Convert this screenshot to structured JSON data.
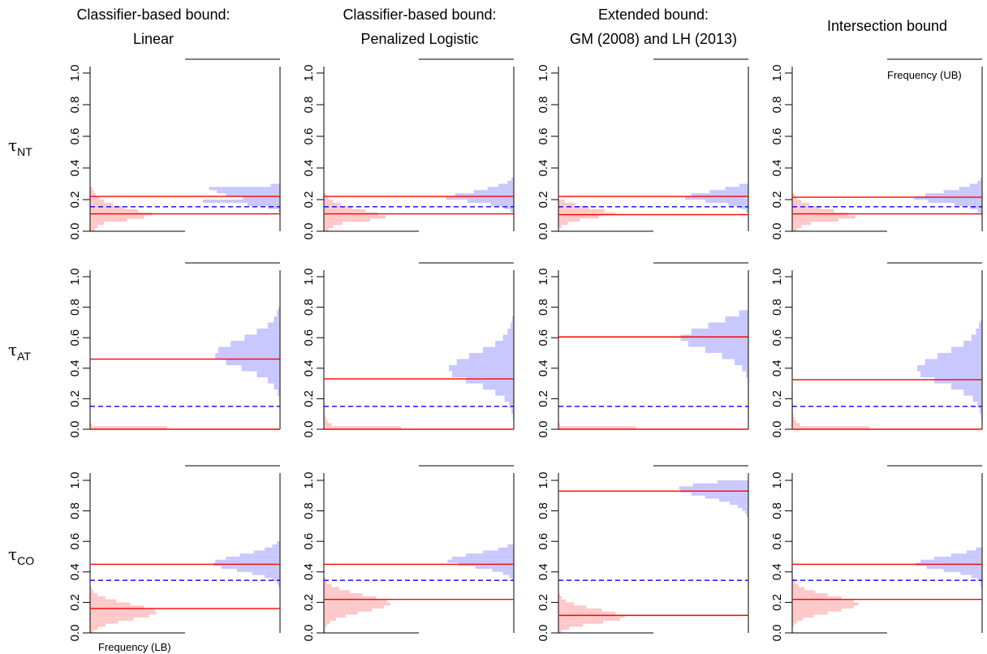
{
  "figure": {
    "column_titles": [
      [
        "Classifier-based bound:",
        "Linear"
      ],
      [
        "Classifier-based bound:",
        "Penalized Logistic"
      ],
      [
        "Extended bound:",
        "GM (2008) and LH (2013)"
      ],
      [
        "Intersection bound"
      ]
    ],
    "row_labels": [
      {
        "greek": "τ",
        "sub": "NT"
      },
      {
        "greek": "τ",
        "sub": "AT"
      },
      {
        "greek": "τ",
        "sub": "CO"
      }
    ],
    "frequency_lb_label": "Frequency (LB)",
    "frequency_ub_label": "Frequency (UB)",
    "y_ticks": [
      "0.0",
      "0.2",
      "0.4",
      "0.6",
      "0.8",
      "1.0"
    ],
    "colors": {
      "lb_hist": "#ffc8c8",
      "ub_hist": "#c8c8ff",
      "bound_line": "#ff0000",
      "truth_line": "#0000ff"
    }
  },
  "chart_data": {
    "type": "histogram",
    "ylim": [
      0,
      1
    ],
    "panels": [
      {
        "row": "NT",
        "col": "Classifier-based bound: Linear",
        "lb_mean": 0.11,
        "ub_mean": 0.22,
        "truth": 0.155,
        "lb_hist": {
          "bins": [
            0.0,
            0.02,
            0.04,
            0.06,
            0.08,
            0.1,
            0.12,
            0.14,
            0.16,
            0.18,
            0.2,
            0.22,
            0.24,
            0.26,
            0.28
          ],
          "counts": [
            6,
            10,
            18,
            48,
            70,
            80,
            62,
            44,
            30,
            18,
            12,
            7,
            5,
            3
          ]
        },
        "ub_hist": {
          "bins": [
            0.12,
            0.14,
            0.16,
            0.18,
            0.2,
            0.22,
            0.24,
            0.26,
            0.28,
            0.3
          ],
          "counts": [
            2,
            16,
            42,
            100,
            48,
            70,
            82,
            92,
            12
          ]
        }
      },
      {
        "row": "NT",
        "col": "Classifier-based bound: Penalized Logistic",
        "lb_mean": 0.11,
        "ub_mean": 0.22,
        "truth": 0.155,
        "lb_hist": {
          "bins": [
            0.0,
            0.02,
            0.04,
            0.06,
            0.08,
            0.1,
            0.12,
            0.14,
            0.16,
            0.18,
            0.2,
            0.22,
            0.24
          ],
          "counts": [
            6,
            12,
            24,
            60,
            80,
            70,
            54,
            36,
            22,
            12,
            6,
            3
          ]
        },
        "ub_hist": {
          "bins": [
            0.1,
            0.12,
            0.14,
            0.16,
            0.18,
            0.2,
            0.22,
            0.24,
            0.26,
            0.28,
            0.3,
            0.32,
            0.34
          ],
          "counts": [
            1,
            4,
            12,
            30,
            60,
            88,
            76,
            52,
            34,
            20,
            8,
            3
          ]
        }
      },
      {
        "row": "NT",
        "col": "Extended bound: GM (2008) and LH (2013)",
        "lb_mean": 0.105,
        "ub_mean": 0.22,
        "truth": 0.155,
        "lb_hist": {
          "bins": [
            0.02,
            0.04,
            0.06,
            0.08,
            0.1,
            0.12,
            0.14,
            0.16,
            0.18,
            0.2
          ],
          "counts": [
            4,
            12,
            28,
            52,
            74,
            60,
            40,
            22,
            8
          ]
        },
        "ub_hist": {
          "bins": [
            0.12,
            0.14,
            0.16,
            0.18,
            0.2,
            0.22,
            0.24,
            0.26,
            0.28,
            0.3
          ],
          "counts": [
            3,
            10,
            26,
            56,
            82,
            74,
            50,
            30,
            12
          ]
        }
      },
      {
        "row": "NT",
        "col": "Intersection bound",
        "lb_mean": 0.11,
        "ub_mean": 0.215,
        "truth": 0.155,
        "lb_hist": {
          "bins": [
            0.0,
            0.02,
            0.04,
            0.06,
            0.08,
            0.1,
            0.12,
            0.14,
            0.16,
            0.18,
            0.2,
            0.22,
            0.24
          ],
          "counts": [
            6,
            12,
            24,
            60,
            82,
            72,
            54,
            36,
            22,
            12,
            6,
            3
          ]
        },
        "ub_hist": {
          "bins": [
            0.1,
            0.12,
            0.14,
            0.16,
            0.18,
            0.2,
            0.22,
            0.24,
            0.26,
            0.28,
            0.3,
            0.32,
            0.34
          ],
          "counts": [
            2,
            6,
            16,
            36,
            70,
            88,
            74,
            50,
            30,
            16,
            6,
            2
          ]
        }
      },
      {
        "row": "AT",
        "col": "Classifier-based bound: Linear",
        "lb_mean": 0.0,
        "ub_mean": 0.46,
        "truth": 0.15,
        "lb_hist": {
          "bins": [
            0.0,
            0.02,
            0.04
          ],
          "counts": [
            100,
            2
          ]
        },
        "ub_hist": {
          "bins": [
            0.18,
            0.22,
            0.26,
            0.3,
            0.34,
            0.38,
            0.42,
            0.46,
            0.5,
            0.54,
            0.58,
            0.62,
            0.66,
            0.7,
            0.74,
            0.78,
            0.8
          ],
          "counts": [
            1,
            3,
            8,
            16,
            30,
            50,
            70,
            84,
            80,
            64,
            46,
            30,
            16,
            8,
            4,
            2
          ]
        }
      },
      {
        "row": "AT",
        "col": "Classifier-based bound: Penalized Logistic",
        "lb_mean": 0.0,
        "ub_mean": 0.33,
        "truth": 0.15,
        "lb_hist": {
          "bins": [
            0.0,
            0.02,
            0.04,
            0.06,
            0.08,
            0.1,
            0.12,
            0.14,
            0.16,
            0.18
          ],
          "counts": [
            100,
            10,
            5,
            3,
            2,
            1,
            1,
            1,
            1
          ]
        },
        "ub_hist": {
          "bins": [
            0.06,
            0.1,
            0.14,
            0.18,
            0.22,
            0.26,
            0.3,
            0.34,
            0.38,
            0.42,
            0.46,
            0.5,
            0.54,
            0.58,
            0.62,
            0.66,
            0.7,
            0.74
          ],
          "counts": [
            1,
            3,
            6,
            12,
            24,
            40,
            62,
            80,
            84,
            74,
            58,
            40,
            24,
            14,
            8,
            4,
            2
          ]
        }
      },
      {
        "row": "AT",
        "col": "Extended bound: GM (2008) and LH (2013)",
        "lb_mean": 0.0,
        "ub_mean": 0.605,
        "truth": 0.15,
        "lb_hist": {
          "bins": [
            0.0,
            0.02,
            0.04
          ],
          "counts": [
            100,
            2
          ]
        },
        "ub_hist": {
          "bins": [
            0.3,
            0.34,
            0.38,
            0.42,
            0.46,
            0.5,
            0.54,
            0.58,
            0.62,
            0.66,
            0.7,
            0.74,
            0.78
          ],
          "counts": [
            1,
            3,
            8,
            18,
            34,
            56,
            78,
            88,
            74,
            52,
            30,
            12
          ]
        }
      },
      {
        "row": "AT",
        "col": "Intersection bound",
        "lb_mean": 0.0,
        "ub_mean": 0.325,
        "truth": 0.15,
        "lb_hist": {
          "bins": [
            0.0,
            0.02,
            0.04,
            0.06,
            0.08,
            0.1,
            0.12,
            0.14,
            0.16,
            0.18
          ],
          "counts": [
            100,
            10,
            5,
            3,
            2,
            1,
            1,
            1,
            1
          ]
        },
        "ub_hist": {
          "bins": [
            0.06,
            0.1,
            0.14,
            0.18,
            0.22,
            0.26,
            0.3,
            0.34,
            0.38,
            0.42,
            0.46,
            0.5,
            0.54,
            0.58,
            0.62,
            0.66,
            0.7,
            0.72
          ],
          "counts": [
            1,
            3,
            6,
            12,
            24,
            40,
            62,
            80,
            84,
            74,
            58,
            40,
            24,
            14,
            8,
            4,
            2
          ]
        }
      },
      {
        "row": "CO",
        "col": "Classifier-based bound: Linear",
        "lb_mean": 0.16,
        "ub_mean": 0.45,
        "truth": 0.345,
        "lb_hist": {
          "bins": [
            0.0,
            0.02,
            0.04,
            0.06,
            0.08,
            0.1,
            0.12,
            0.14,
            0.16,
            0.18,
            0.2,
            0.22,
            0.24,
            0.26,
            0.28,
            0.3
          ],
          "counts": [
            4,
            10,
            20,
            36,
            56,
            76,
            86,
            84,
            70,
            52,
            34,
            20,
            10,
            4,
            2
          ]
        },
        "ub_hist": {
          "bins": [
            0.3,
            0.32,
            0.34,
            0.36,
            0.38,
            0.4,
            0.42,
            0.44,
            0.46,
            0.48,
            0.5,
            0.52,
            0.54,
            0.56,
            0.58,
            0.6
          ],
          "counts": [
            2,
            4,
            10,
            20,
            36,
            56,
            76,
            86,
            84,
            70,
            52,
            34,
            20,
            10,
            4
          ]
        }
      },
      {
        "row": "CO",
        "col": "Classifier-based bound: Penalized Logistic",
        "lb_mean": 0.22,
        "ub_mean": 0.45,
        "truth": 0.345,
        "lb_hist": {
          "bins": [
            0.0,
            0.04,
            0.06,
            0.08,
            0.1,
            0.12,
            0.14,
            0.16,
            0.18,
            0.2,
            0.22,
            0.24,
            0.26,
            0.28,
            0.3,
            0.32,
            0.34,
            0.36
          ],
          "counts": [
            2,
            4,
            8,
            16,
            28,
            44,
            62,
            78,
            86,
            82,
            68,
            50,
            34,
            20,
            10,
            4,
            2
          ]
        },
        "ub_hist": {
          "bins": [
            0.34,
            0.36,
            0.38,
            0.4,
            0.42,
            0.44,
            0.46,
            0.48,
            0.5,
            0.52,
            0.54,
            0.56,
            0.58
          ],
          "counts": [
            2,
            6,
            14,
            28,
            50,
            72,
            86,
            80,
            62,
            40,
            20,
            8
          ]
        }
      },
      {
        "row": "CO",
        "col": "Extended bound: GM (2008) and LH (2013)",
        "lb_mean": 0.115,
        "ub_mean": 0.93,
        "truth": 0.345,
        "lb_hist": {
          "bins": [
            0.0,
            0.02,
            0.04,
            0.06,
            0.08,
            0.1,
            0.12,
            0.14,
            0.16,
            0.18,
            0.2,
            0.22,
            0.24,
            0.26
          ],
          "counts": [
            4,
            14,
            32,
            58,
            80,
            86,
            74,
            56,
            36,
            20,
            10,
            4,
            2
          ]
        },
        "ub_hist": {
          "bins": [
            0.76,
            0.78,
            0.8,
            0.82,
            0.84,
            0.86,
            0.88,
            0.9,
            0.92,
            0.94,
            0.96,
            0.98,
            1.0
          ],
          "counts": [
            2,
            4,
            8,
            14,
            24,
            38,
            56,
            74,
            88,
            90,
            72,
            40
          ]
        }
      },
      {
        "row": "CO",
        "col": "Intersection bound",
        "lb_mean": 0.22,
        "ub_mean": 0.45,
        "truth": 0.345,
        "lb_hist": {
          "bins": [
            0.04,
            0.06,
            0.08,
            0.1,
            0.12,
            0.14,
            0.16,
            0.18,
            0.2,
            0.22,
            0.24,
            0.26,
            0.28,
            0.3,
            0.32,
            0.34,
            0.36
          ],
          "counts": [
            2,
            6,
            14,
            28,
            46,
            64,
            80,
            86,
            80,
            64,
            46,
            30,
            16,
            8,
            4,
            2
          ]
        },
        "ub_hist": {
          "bins": [
            0.3,
            0.34,
            0.36,
            0.38,
            0.4,
            0.42,
            0.44,
            0.46,
            0.48,
            0.5,
            0.52,
            0.54,
            0.56
          ],
          "counts": [
            2,
            6,
            14,
            28,
            50,
            72,
            86,
            80,
            62,
            40,
            20,
            8
          ]
        }
      }
    ]
  }
}
